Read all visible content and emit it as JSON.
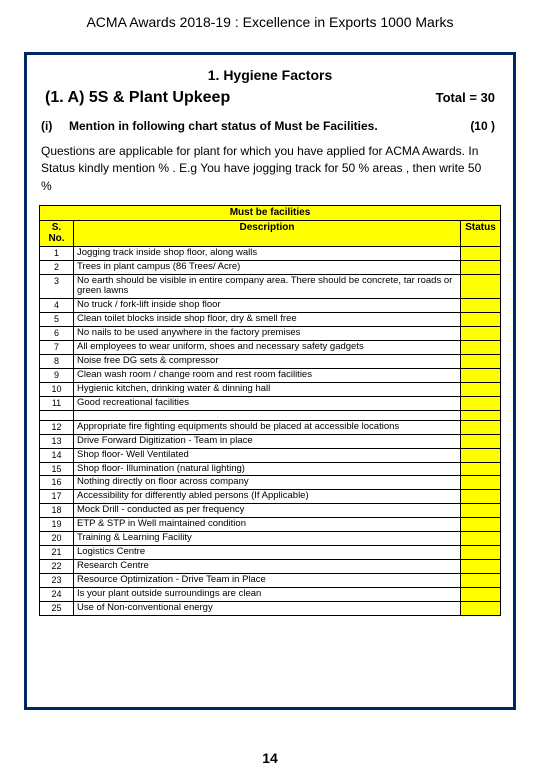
{
  "page_title": "ACMA  Awards  2018-19 : Excellence in Exports 1000 Marks",
  "section_header": "1. Hygiene Factors",
  "subsection": {
    "title": "(1. A) 5S & Plant Upkeep",
    "total": "Total  = 30"
  },
  "instruction": {
    "marker": "(i)",
    "text": "Mention in following chart  status  of Must be Facilities.",
    "marks": "(10 )"
  },
  "body_text": "Questions are applicable for plant for which you have applied for ACMA Awards. In Status kindly mention % . E.g You have jogging track for 50 % areas , then write 50 %",
  "table": {
    "caption": "Must  be  facilities",
    "columns": {
      "sno": "S. No.",
      "desc": "Description",
      "status": "Status"
    },
    "colors": {
      "highlight": "#ffff00",
      "border": "#000000",
      "frame": "#002664"
    },
    "rows_a": [
      {
        "n": "1",
        "d": "Jogging track inside shop floor, along walls"
      },
      {
        "n": "2",
        "d": "Trees in plant campus (86 Trees/ Acre)"
      },
      {
        "n": "3",
        "d": "No earth should be visible in entire company area. There should be concrete, tar roads or green lawns"
      },
      {
        "n": "4",
        "d": "No truck / fork-lift inside shop floor"
      },
      {
        "n": "5",
        "d": "Clean toilet blocks inside shop floor, dry & smell free"
      },
      {
        "n": "6",
        "d": "No nails to be used anywhere in the factory premises"
      },
      {
        "n": "7",
        "d": "All employees to wear uniform, shoes and necessary safety gadgets"
      },
      {
        "n": "8",
        "d": "Noise free DG sets & compressor"
      },
      {
        "n": "9",
        "d": "Clean wash room / change room and rest room facilities"
      },
      {
        "n": "10",
        "d": "Hygienic kitchen, drinking water & dinning hall"
      },
      {
        "n": "11",
        "d": "Good recreational facilities"
      }
    ],
    "rows_b": [
      {
        "n": "12",
        "d": "Appropriate fire fighting equipments should be placed at accessible locations"
      },
      {
        "n": "13",
        "d": "Drive Forward Digitization - Team in place"
      },
      {
        "n": "14",
        "d": "Shop floor- Well Ventilated"
      },
      {
        "n": "15",
        "d": "Shop floor- Illumination (natural lighting)"
      },
      {
        "n": "16",
        "d": "Nothing directly on floor across company"
      },
      {
        "n": "17",
        "d": "Accessibility for differently abled persons (If Applicable)"
      },
      {
        "n": "18",
        "d": "Mock Drill - conducted as per frequency"
      },
      {
        "n": "19",
        "d": "ETP & STP in Well maintained condition"
      },
      {
        "n": "20",
        "d": "Training & Learning Facility"
      },
      {
        "n": "21",
        "d": "Logistics Centre"
      },
      {
        "n": "22",
        "d": "Research Centre"
      },
      {
        "n": "23",
        "d": "Resource Optimization  -   Drive Team in Place"
      },
      {
        "n": "24",
        "d": "Is your plant outside surroundings are clean"
      },
      {
        "n": "25",
        "d": "Use of Non-conventional energy"
      }
    ]
  },
  "page_number": "14"
}
